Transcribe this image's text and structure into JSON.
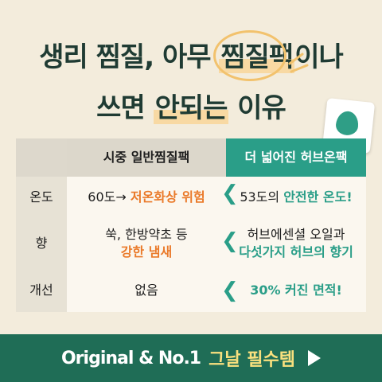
{
  "headline": {
    "line1_part1": "생리 찜질, 아무 ",
    "line1_part2": "찜질팩",
    "line1_part3": "이나",
    "line2_part1": "쓰면 ",
    "line2_part2": "안되는",
    "line2_part3": " 이유"
  },
  "table": {
    "col_market": "시중 일반찜질팩",
    "col_herb": "더 넓어진 허브온팩",
    "rows": [
      {
        "label": "온도",
        "market_plain": "60도→ ",
        "market_emph": "저온화상 위험",
        "herb_plain": "53도의 ",
        "herb_emph": "안전한 온도!"
      },
      {
        "label": "향",
        "market_plain": "쑥, 한방약초 등",
        "market_emph": "강한 냄새",
        "herb_plain": "허브에센셜 오일과",
        "herb_emph": "다섯가지 허브의 향기"
      },
      {
        "label": "개선",
        "market_plain": "없음",
        "market_emph": "",
        "herb_plain": "",
        "herb_emph": "30% 커진 면적!"
      }
    ]
  },
  "footer": {
    "brand_text": "Original & No.1",
    "accent_text": "그날 필수템"
  },
  "colors": {
    "brand_green": "#2a9e88",
    "accent_orange": "#ea7a2a",
    "footer_bg": "#1f6d56"
  }
}
